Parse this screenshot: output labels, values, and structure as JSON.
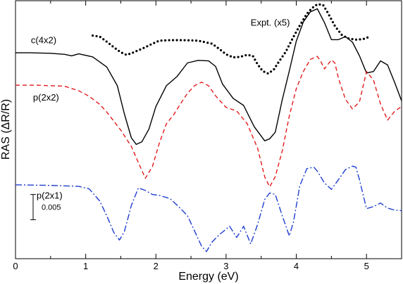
{
  "chart_data": {
    "type": "line",
    "xlabel": "Energy (eV)",
    "ylabel": "RAS (ΔR/R)",
    "xlim": [
      0,
      5.5
    ],
    "ylim": [
      -0.025,
      0.026
    ],
    "x_ticks": [
      0,
      1,
      2,
      3,
      4,
      5
    ],
    "y_ticks_shown": false,
    "grid": false,
    "scale_bar": {
      "label": "0.005",
      "value": 0.005,
      "y_bottom": -0.0173
    },
    "series": [
      {
        "name": "Expt. (x5)",
        "style": "dotted",
        "color": "#000000",
        "label_at": [
          3.35,
          0.0211
        ],
        "x": [
          1.1,
          1.2,
          1.3,
          1.4,
          1.5,
          1.58,
          1.65,
          1.75,
          1.85,
          1.95,
          2.05,
          2.2,
          2.4,
          2.6,
          2.8,
          2.9,
          3.0,
          3.1,
          3.2,
          3.3,
          3.38,
          3.45,
          3.52,
          3.6,
          3.68,
          3.75,
          3.85,
          3.95,
          4.05,
          4.15,
          4.22,
          4.3,
          4.38,
          4.45,
          4.55,
          4.65,
          4.75,
          4.85,
          4.95,
          5.05
        ],
        "y": [
          0.0191,
          0.0189,
          0.0179,
          0.0168,
          0.0158,
          0.0153,
          0.0156,
          0.0162,
          0.0168,
          0.0175,
          0.0181,
          0.0182,
          0.0182,
          0.0181,
          0.0175,
          0.0165,
          0.0154,
          0.0148,
          0.0149,
          0.0153,
          0.0151,
          0.0134,
          0.0121,
          0.0116,
          0.0124,
          0.0139,
          0.0159,
          0.0186,
          0.0211,
          0.0234,
          0.0245,
          0.0253,
          0.0252,
          0.0236,
          0.021,
          0.0192,
          0.0185,
          0.0183,
          0.0184,
          0.0189
        ]
      },
      {
        "name": "c(4x2)",
        "style": "solid",
        "color": "#000000",
        "label_at": [
          0.22,
          0.0176
        ],
        "x": [
          0,
          0.2,
          0.5,
          0.7,
          0.8,
          0.9,
          1.1,
          1.3,
          1.45,
          1.55,
          1.65,
          1.72,
          1.8,
          1.9,
          2.0,
          2.15,
          2.3,
          2.45,
          2.6,
          2.75,
          2.85,
          2.95,
          3.1,
          3.25,
          3.4,
          3.55,
          3.62,
          3.7,
          3.8,
          3.9,
          4.0,
          4.1,
          4.2,
          4.3,
          4.4,
          4.5,
          4.6,
          4.7,
          4.8,
          4.9,
          5.0,
          5.1,
          5.2,
          5.3,
          5.4,
          5.5
        ],
        "y": [
          0.0157,
          0.0157,
          0.0156,
          0.0154,
          0.0151,
          0.0155,
          0.0149,
          0.0129,
          0.0092,
          0.0037,
          -0.0011,
          -0.0024,
          -0.0019,
          0.0006,
          0.0051,
          0.0092,
          0.011,
          0.0137,
          0.0142,
          0.0141,
          0.013,
          0.0095,
          0.0067,
          0.0053,
          0.0011,
          -0.0017,
          -0.0013,
          0.0,
          0.0064,
          0.0121,
          0.018,
          0.0218,
          0.0238,
          0.0244,
          0.0217,
          0.0183,
          0.0183,
          0.0189,
          0.0178,
          0.0151,
          0.0117,
          0.012,
          0.0141,
          0.0133,
          0.0099,
          0.0062
        ]
      },
      {
        "name": "p(2x2)",
        "style": "dashed",
        "color": "#e31a1c",
        "label_at": [
          0.25,
          0.0063
        ],
        "x": [
          0,
          0.3,
          0.7,
          0.9,
          1.05,
          1.2,
          1.3,
          1.5,
          1.65,
          1.75,
          1.85,
          1.95,
          2.05,
          2.15,
          2.25,
          2.35,
          2.45,
          2.55,
          2.65,
          2.75,
          2.85,
          3.0,
          3.15,
          3.3,
          3.45,
          3.55,
          3.62,
          3.7,
          3.8,
          3.9,
          4.0,
          4.1,
          4.2,
          4.3,
          4.35,
          4.4,
          4.5,
          4.55,
          4.6,
          4.7,
          4.8,
          4.9,
          5.0,
          5.1,
          5.2,
          5.3,
          5.4,
          5.5
        ],
        "y": [
          0.0093,
          0.0093,
          0.0091,
          0.0082,
          0.0071,
          0.0055,
          0.004,
          0.0004,
          -0.0028,
          -0.006,
          -0.0091,
          -0.0068,
          -0.0021,
          0.0017,
          0.0034,
          0.0056,
          0.0077,
          0.0092,
          0.0099,
          0.0092,
          0.0072,
          0.0049,
          0.0042,
          0.0017,
          -0.0032,
          -0.0088,
          -0.0108,
          -0.0088,
          -0.0037,
          0.0032,
          0.0086,
          0.012,
          0.0144,
          0.015,
          0.014,
          0.0125,
          0.0143,
          0.0137,
          0.0107,
          0.0065,
          0.0046,
          0.006,
          0.012,
          0.0103,
          0.0056,
          0.0024,
          0.0041,
          0.0051
        ]
      },
      {
        "name": "p(2x1)",
        "style": "dashdot",
        "color": "#1f3fcf",
        "label_at": [
          0.3,
          -0.0131
        ],
        "x": [
          0,
          0.5,
          0.9,
          1.05,
          1.2,
          1.3,
          1.4,
          1.48,
          1.55,
          1.65,
          1.75,
          1.85,
          1.95,
          2.05,
          2.2,
          2.3,
          2.45,
          2.55,
          2.65,
          2.72,
          2.8,
          2.9,
          3.05,
          3.15,
          3.25,
          3.35,
          3.45,
          3.55,
          3.62,
          3.7,
          3.8,
          3.9,
          3.96,
          4.05,
          4.15,
          4.25,
          4.3,
          4.4,
          4.5,
          4.6,
          4.7,
          4.8,
          4.85,
          4.9,
          5.0,
          5.1,
          5.2,
          5.3,
          5.4,
          5.5
        ],
        "y": [
          -0.0104,
          -0.0105,
          -0.0107,
          -0.0112,
          -0.0136,
          -0.0165,
          -0.0198,
          -0.0213,
          -0.0197,
          -0.0145,
          -0.011,
          -0.0115,
          -0.0123,
          -0.0125,
          -0.0131,
          -0.0144,
          -0.0165,
          -0.0195,
          -0.0225,
          -0.0236,
          -0.0217,
          -0.0203,
          -0.0186,
          -0.0208,
          -0.0186,
          -0.0221,
          -0.0182,
          -0.0133,
          -0.012,
          -0.0123,
          -0.0165,
          -0.0205,
          -0.0177,
          -0.0106,
          -0.0072,
          -0.0069,
          -0.0077,
          -0.01,
          -0.0113,
          -0.0094,
          -0.0074,
          -0.0067,
          -0.0069,
          -0.0094,
          -0.0151,
          -0.0147,
          -0.014,
          -0.015,
          -0.0154,
          -0.0155
        ]
      }
    ]
  }
}
